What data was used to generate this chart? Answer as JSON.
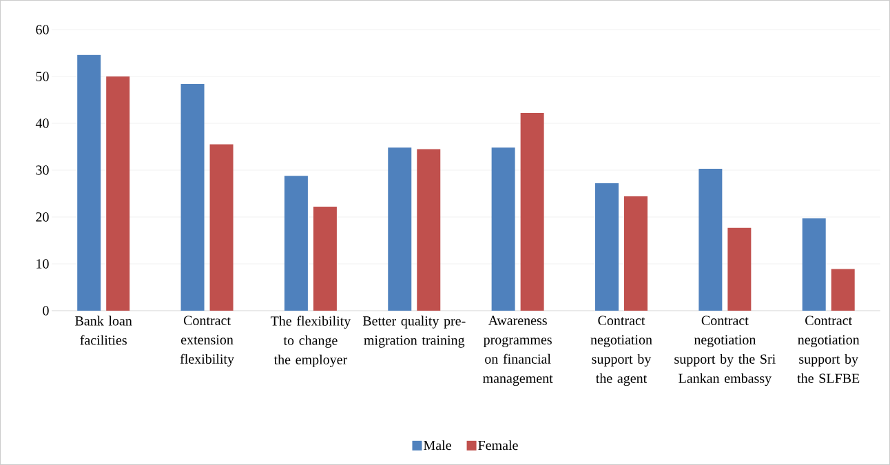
{
  "chart_data": {
    "type": "bar",
    "categories": [
      "Bank loan facilities",
      "Contract extension flexibility",
      "The flexibility to change the employer",
      "Better quality pre-migration training",
      "Awareness programmes on financial management",
      "Contract negotiation support by the agent",
      "Contract negotiation support by the Sri Lankan embassy",
      "Contract negotiation support by the SLFBE"
    ],
    "series": [
      {
        "name": "Male",
        "color": "#4f81bd",
        "values": [
          54.6,
          48.4,
          28.8,
          34.8,
          34.8,
          27.2,
          30.3,
          19.7
        ]
      },
      {
        "name": "Female",
        "color": "#c0504d",
        "values": [
          50.0,
          35.5,
          22.2,
          34.5,
          42.2,
          24.4,
          17.7,
          8.9
        ]
      }
    ],
    "ylim": [
      0,
      60
    ],
    "yticks": [
      0,
      10,
      20,
      30,
      40,
      50,
      60
    ],
    "grid": "y",
    "legend": "bottom"
  }
}
